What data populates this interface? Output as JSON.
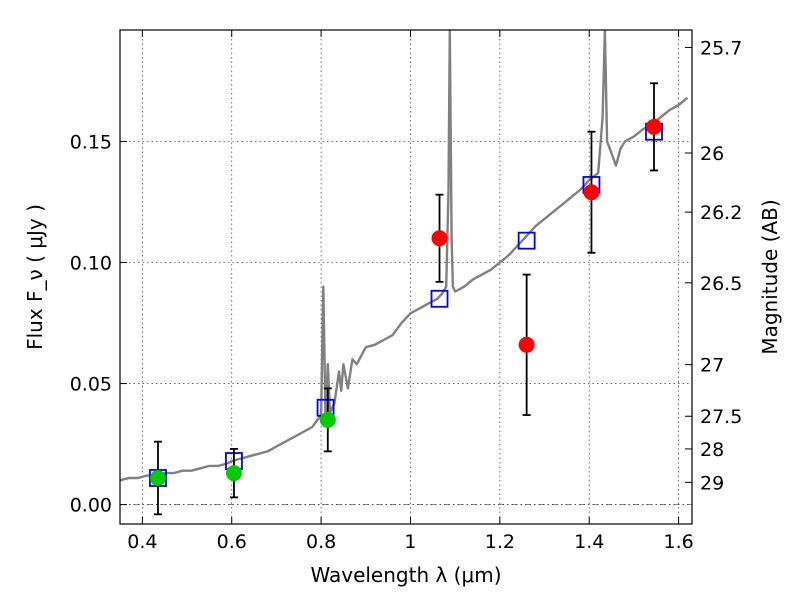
{
  "chart_data": {
    "type": "scatter",
    "xlabel": "Wavelength  λ (μm)",
    "ylabel": "Flux  F_ν  ( μJy )",
    "ylabel_right": "Magnitude (AB)",
    "xlim": [
      0.35,
      1.63
    ],
    "ylim": [
      -0.008,
      0.196
    ],
    "xticks": [
      0.4,
      0.6,
      0.8,
      1.0,
      1.2,
      1.4,
      1.6
    ],
    "xtick_labels": [
      "0.4",
      "0.6",
      "0.8",
      "1",
      "1.2",
      "1.4",
      "1.6"
    ],
    "yticks": [
      0.0,
      0.05,
      0.1,
      0.15
    ],
    "ytick_labels": [
      "0.00",
      "0.05",
      "0.10",
      "0.15"
    ],
    "right_ticks": [
      {
        "label": "25.7",
        "flux": 0.1888
      },
      {
        "label": "26",
        "flux": 0.1452
      },
      {
        "label": "26.2",
        "flux": 0.1208
      },
      {
        "label": "26.5",
        "flux": 0.0916
      },
      {
        "label": "27",
        "flux": 0.0578
      },
      {
        "label": "27.5",
        "flux": 0.0365
      },
      {
        "label": "28",
        "flux": 0.023
      },
      {
        "label": "29",
        "flux": 0.0092
      }
    ],
    "grid": true,
    "series": [
      {
        "kind": "line",
        "color": "#808080",
        "x": [
          0.35,
          0.37,
          0.39,
          0.41,
          0.43,
          0.45,
          0.47,
          0.49,
          0.51,
          0.53,
          0.55,
          0.57,
          0.59,
          0.6,
          0.62,
          0.64,
          0.66,
          0.68,
          0.7,
          0.72,
          0.74,
          0.76,
          0.78,
          0.8,
          0.805,
          0.81,
          0.815,
          0.82,
          0.83,
          0.84,
          0.845,
          0.85,
          0.86,
          0.87,
          0.88,
          0.9,
          0.92,
          0.94,
          0.96,
          0.98,
          1.0,
          1.02,
          1.04,
          1.06,
          1.07,
          1.08,
          1.085,
          1.088,
          1.092,
          1.095,
          1.1,
          1.12,
          1.14,
          1.16,
          1.18,
          1.2,
          1.22,
          1.24,
          1.26,
          1.28,
          1.3,
          1.32,
          1.34,
          1.36,
          1.38,
          1.4,
          1.42,
          1.43,
          1.435,
          1.44,
          1.45,
          1.46,
          1.47,
          1.48,
          1.5,
          1.52,
          1.54,
          1.56,
          1.58,
          1.6,
          1.62
        ],
        "y": [
          0.01,
          0.011,
          0.011,
          0.012,
          0.012,
          0.013,
          0.013,
          0.014,
          0.014,
          0.015,
          0.016,
          0.016,
          0.017,
          0.018,
          0.019,
          0.02,
          0.021,
          0.022,
          0.024,
          0.026,
          0.028,
          0.03,
          0.032,
          0.037,
          0.09,
          0.034,
          0.058,
          0.038,
          0.042,
          0.055,
          0.047,
          0.058,
          0.048,
          0.06,
          0.058,
          0.065,
          0.066,
          0.068,
          0.07,
          0.075,
          0.079,
          0.081,
          0.083,
          0.085,
          0.087,
          0.09,
          0.13,
          0.196,
          0.11,
          0.09,
          0.088,
          0.09,
          0.093,
          0.095,
          0.097,
          0.1,
          0.103,
          0.107,
          0.111,
          0.115,
          0.118,
          0.121,
          0.124,
          0.127,
          0.13,
          0.134,
          0.137,
          0.16,
          0.196,
          0.15,
          0.145,
          0.14,
          0.147,
          0.15,
          0.152,
          0.155,
          0.157,
          0.16,
          0.163,
          0.165,
          0.168
        ]
      },
      {
        "kind": "open-square",
        "color": "#0000ff",
        "x": [
          0.435,
          0.605,
          0.81,
          1.065,
          1.26,
          1.405,
          1.545
        ],
        "y": [
          0.011,
          0.018,
          0.04,
          0.085,
          0.109,
          0.132,
          0.154
        ]
      },
      {
        "kind": "errorbar-point",
        "color": "#00cc00",
        "x": [
          0.435,
          0.605,
          0.815
        ],
        "y": [
          0.011,
          0.013,
          0.035
        ],
        "yerr": [
          0.015,
          0.01,
          0.013
        ]
      },
      {
        "kind": "errorbar-point",
        "color": "#ff0000",
        "x": [
          1.065,
          1.26,
          1.405,
          1.545
        ],
        "y": [
          0.11,
          0.066,
          0.129,
          0.156
        ],
        "yerr": [
          0.018,
          0.029,
          0.025,
          0.018
        ]
      }
    ],
    "reference_line": {
      "y": 0.0,
      "color": "#000000",
      "style": "dash-dot"
    }
  }
}
